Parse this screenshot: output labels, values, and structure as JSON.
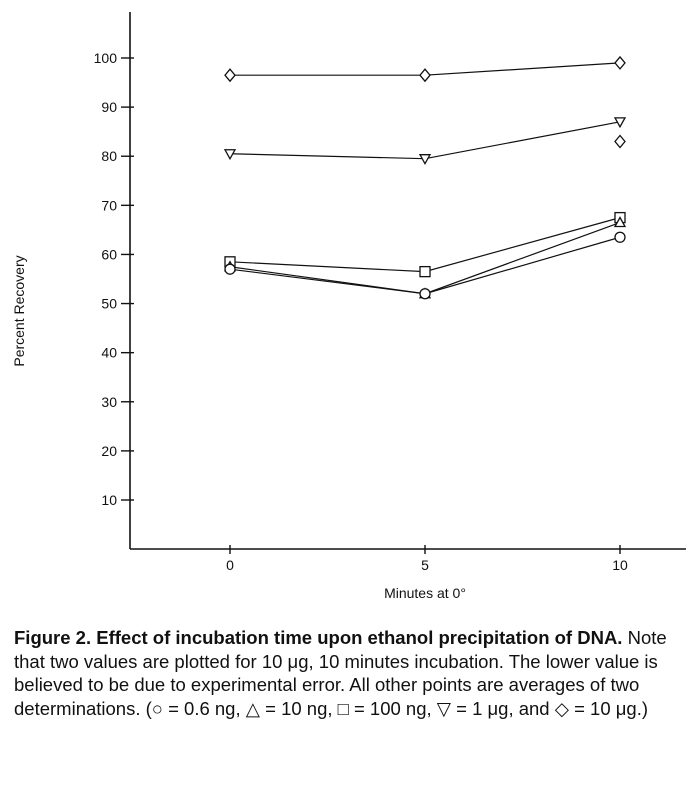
{
  "chart_data": {
    "type": "line",
    "xlabel": "Minutes at 0°",
    "ylabel": "Percent Recovery",
    "x": [
      0,
      5,
      10
    ],
    "x_ticks": [
      "0",
      "5",
      "10"
    ],
    "y_ticks": [
      "10",
      "20",
      "30",
      "40",
      "50",
      "60",
      "70",
      "80",
      "90",
      "100"
    ],
    "ylim": [
      0,
      110
    ],
    "grid": false,
    "series": [
      {
        "marker": "diamond",
        "values": [
          96.5,
          96.5,
          99
        ]
      },
      {
        "marker": "triangle-down",
        "values": [
          80.5,
          79.5,
          87
        ]
      },
      {
        "marker": "square",
        "values": [
          58.5,
          56.5,
          67.5
        ]
      },
      {
        "marker": "triangle-up",
        "values": [
          57.5,
          52,
          66.5
        ]
      },
      {
        "marker": "circle",
        "values": [
          57,
          52,
          63.5
        ]
      }
    ],
    "extra_points": [
      {
        "marker": "diamond",
        "x": 10,
        "y": 83
      }
    ]
  },
  "caption": {
    "bold": "Figure 2.  Effect of incubation time upon ethanol precipitation of DNA.",
    "text": " Note that two values are plotted for 10 μg, 10 minutes incubation. The lower value is believed to be due to experimental error. All other points are averages of two determinations. (○ = 0.6 ng, △ = 10 ng, □ = 100 ng, ▽ = 1 μg, and ◇ = 10 μg.)"
  }
}
